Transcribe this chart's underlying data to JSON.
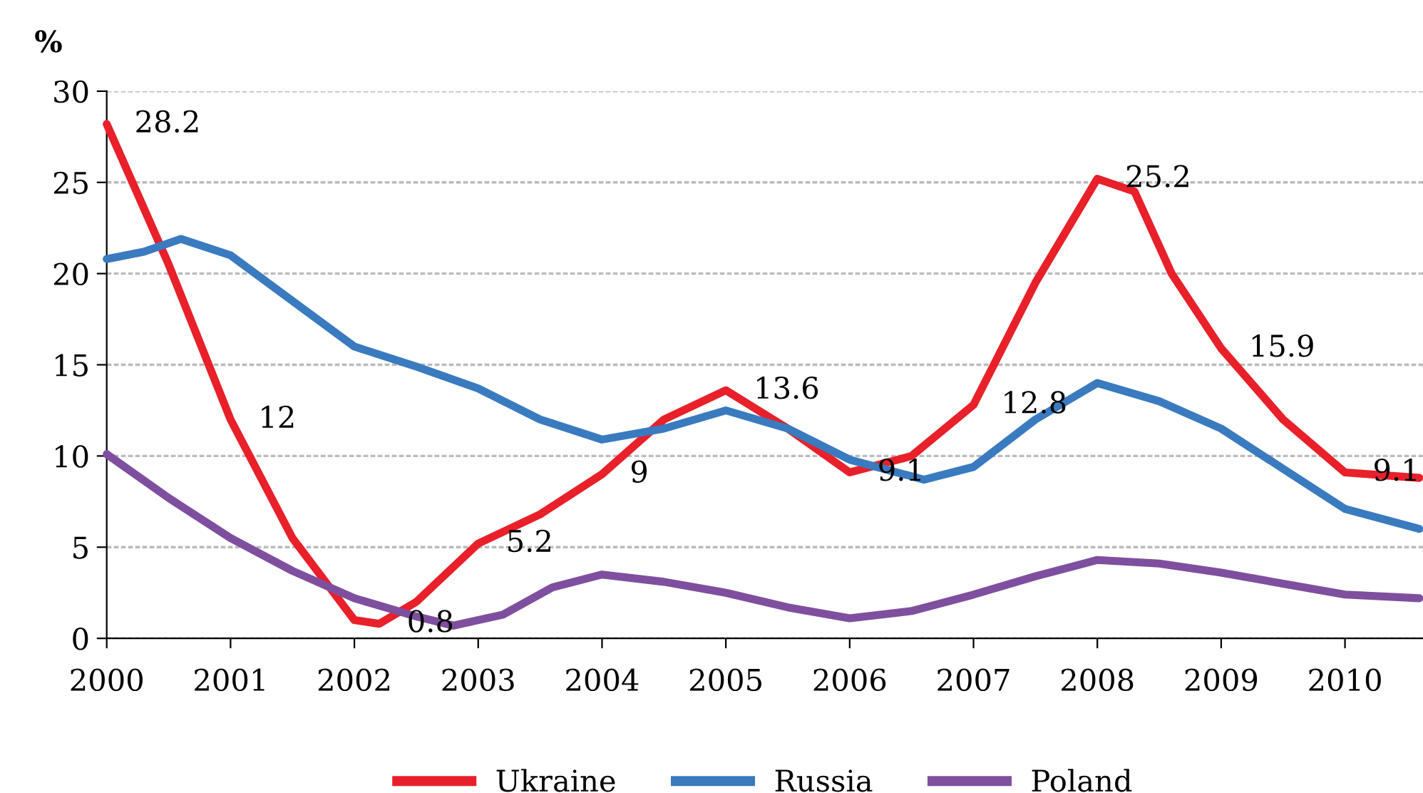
{
  "chart_data": {
    "type": "line",
    "ylabel": "%",
    "xlim": [
      2000,
      2010.63
    ],
    "xticks": [
      2000,
      2001,
      2002,
      2003,
      2004,
      2005,
      2006,
      2007,
      2008,
      2009,
      2010
    ],
    "ylim": [
      0,
      30
    ],
    "yticks": [
      0,
      5,
      10,
      15,
      20,
      25,
      30
    ],
    "grid": "y",
    "legend": "bottom",
    "marker": "none",
    "line_style": "solid",
    "series": [
      {
        "name": "Ukraine",
        "color": "#e8202a",
        "x": [
          2000,
          2000.5,
          2001,
          2001.5,
          2002,
          2002.2,
          2002.5,
          2003,
          2003.5,
          2004,
          2004.5,
          2005,
          2005.5,
          2006,
          2006.5,
          2007,
          2007.5,
          2008,
          2008.3,
          2008.6,
          2009,
          2009.5,
          2010,
          2010.6
        ],
        "values": [
          28.2,
          20.5,
          12,
          5.5,
          1.0,
          0.8,
          2.0,
          5.2,
          6.8,
          9,
          12.0,
          13.6,
          11.5,
          9.1,
          10.0,
          12.8,
          19.5,
          25.2,
          24.5,
          20,
          15.9,
          12.0,
          9.1,
          8.8
        ],
        "value_labels": [
          "28.2",
          null,
          "12",
          null,
          null,
          "0.8",
          null,
          "5.2",
          null,
          "9",
          null,
          "13.6",
          null,
          "9.1",
          null,
          "12.8",
          null,
          "25.2",
          null,
          null,
          "15.9",
          null,
          "9.1",
          null
        ]
      },
      {
        "name": "Russia",
        "color": "#3a7bbf",
        "x": [
          2000,
          2000.3,
          2000.6,
          2001,
          2001.5,
          2002,
          2002.5,
          2003,
          2003.5,
          2004,
          2004.5,
          2005,
          2005.5,
          2006,
          2006.6,
          2007,
          2007.5,
          2008,
          2008.5,
          2009,
          2009.5,
          2010,
          2010.6
        ],
        "values": [
          20.8,
          21.2,
          21.9,
          21,
          18.5,
          16,
          14.9,
          13.7,
          12.0,
          10.9,
          11.5,
          12.5,
          11.5,
          9.8,
          8.7,
          9.4,
          12.0,
          14,
          13.0,
          11.5,
          9.3,
          7.1,
          6.0
        ]
      },
      {
        "name": "Poland",
        "color": "#7f4f9f",
        "x": [
          2000,
          2000.5,
          2001,
          2001.5,
          2002,
          2002.5,
          2002.8,
          2003.2,
          2003.6,
          2004,
          2004.5,
          2005,
          2005.5,
          2006,
          2006.5,
          2007,
          2007.5,
          2008,
          2008.5,
          2009,
          2009.5,
          2010,
          2010.6
        ],
        "values": [
          10.1,
          7.7,
          5.5,
          3.7,
          2.2,
          1.2,
          0.7,
          1.3,
          2.8,
          3.5,
          3.1,
          2.5,
          1.7,
          1.1,
          1.5,
          2.4,
          3.4,
          4.3,
          4.1,
          3.6,
          3.0,
          2.4,
          2.2
        ]
      }
    ]
  }
}
